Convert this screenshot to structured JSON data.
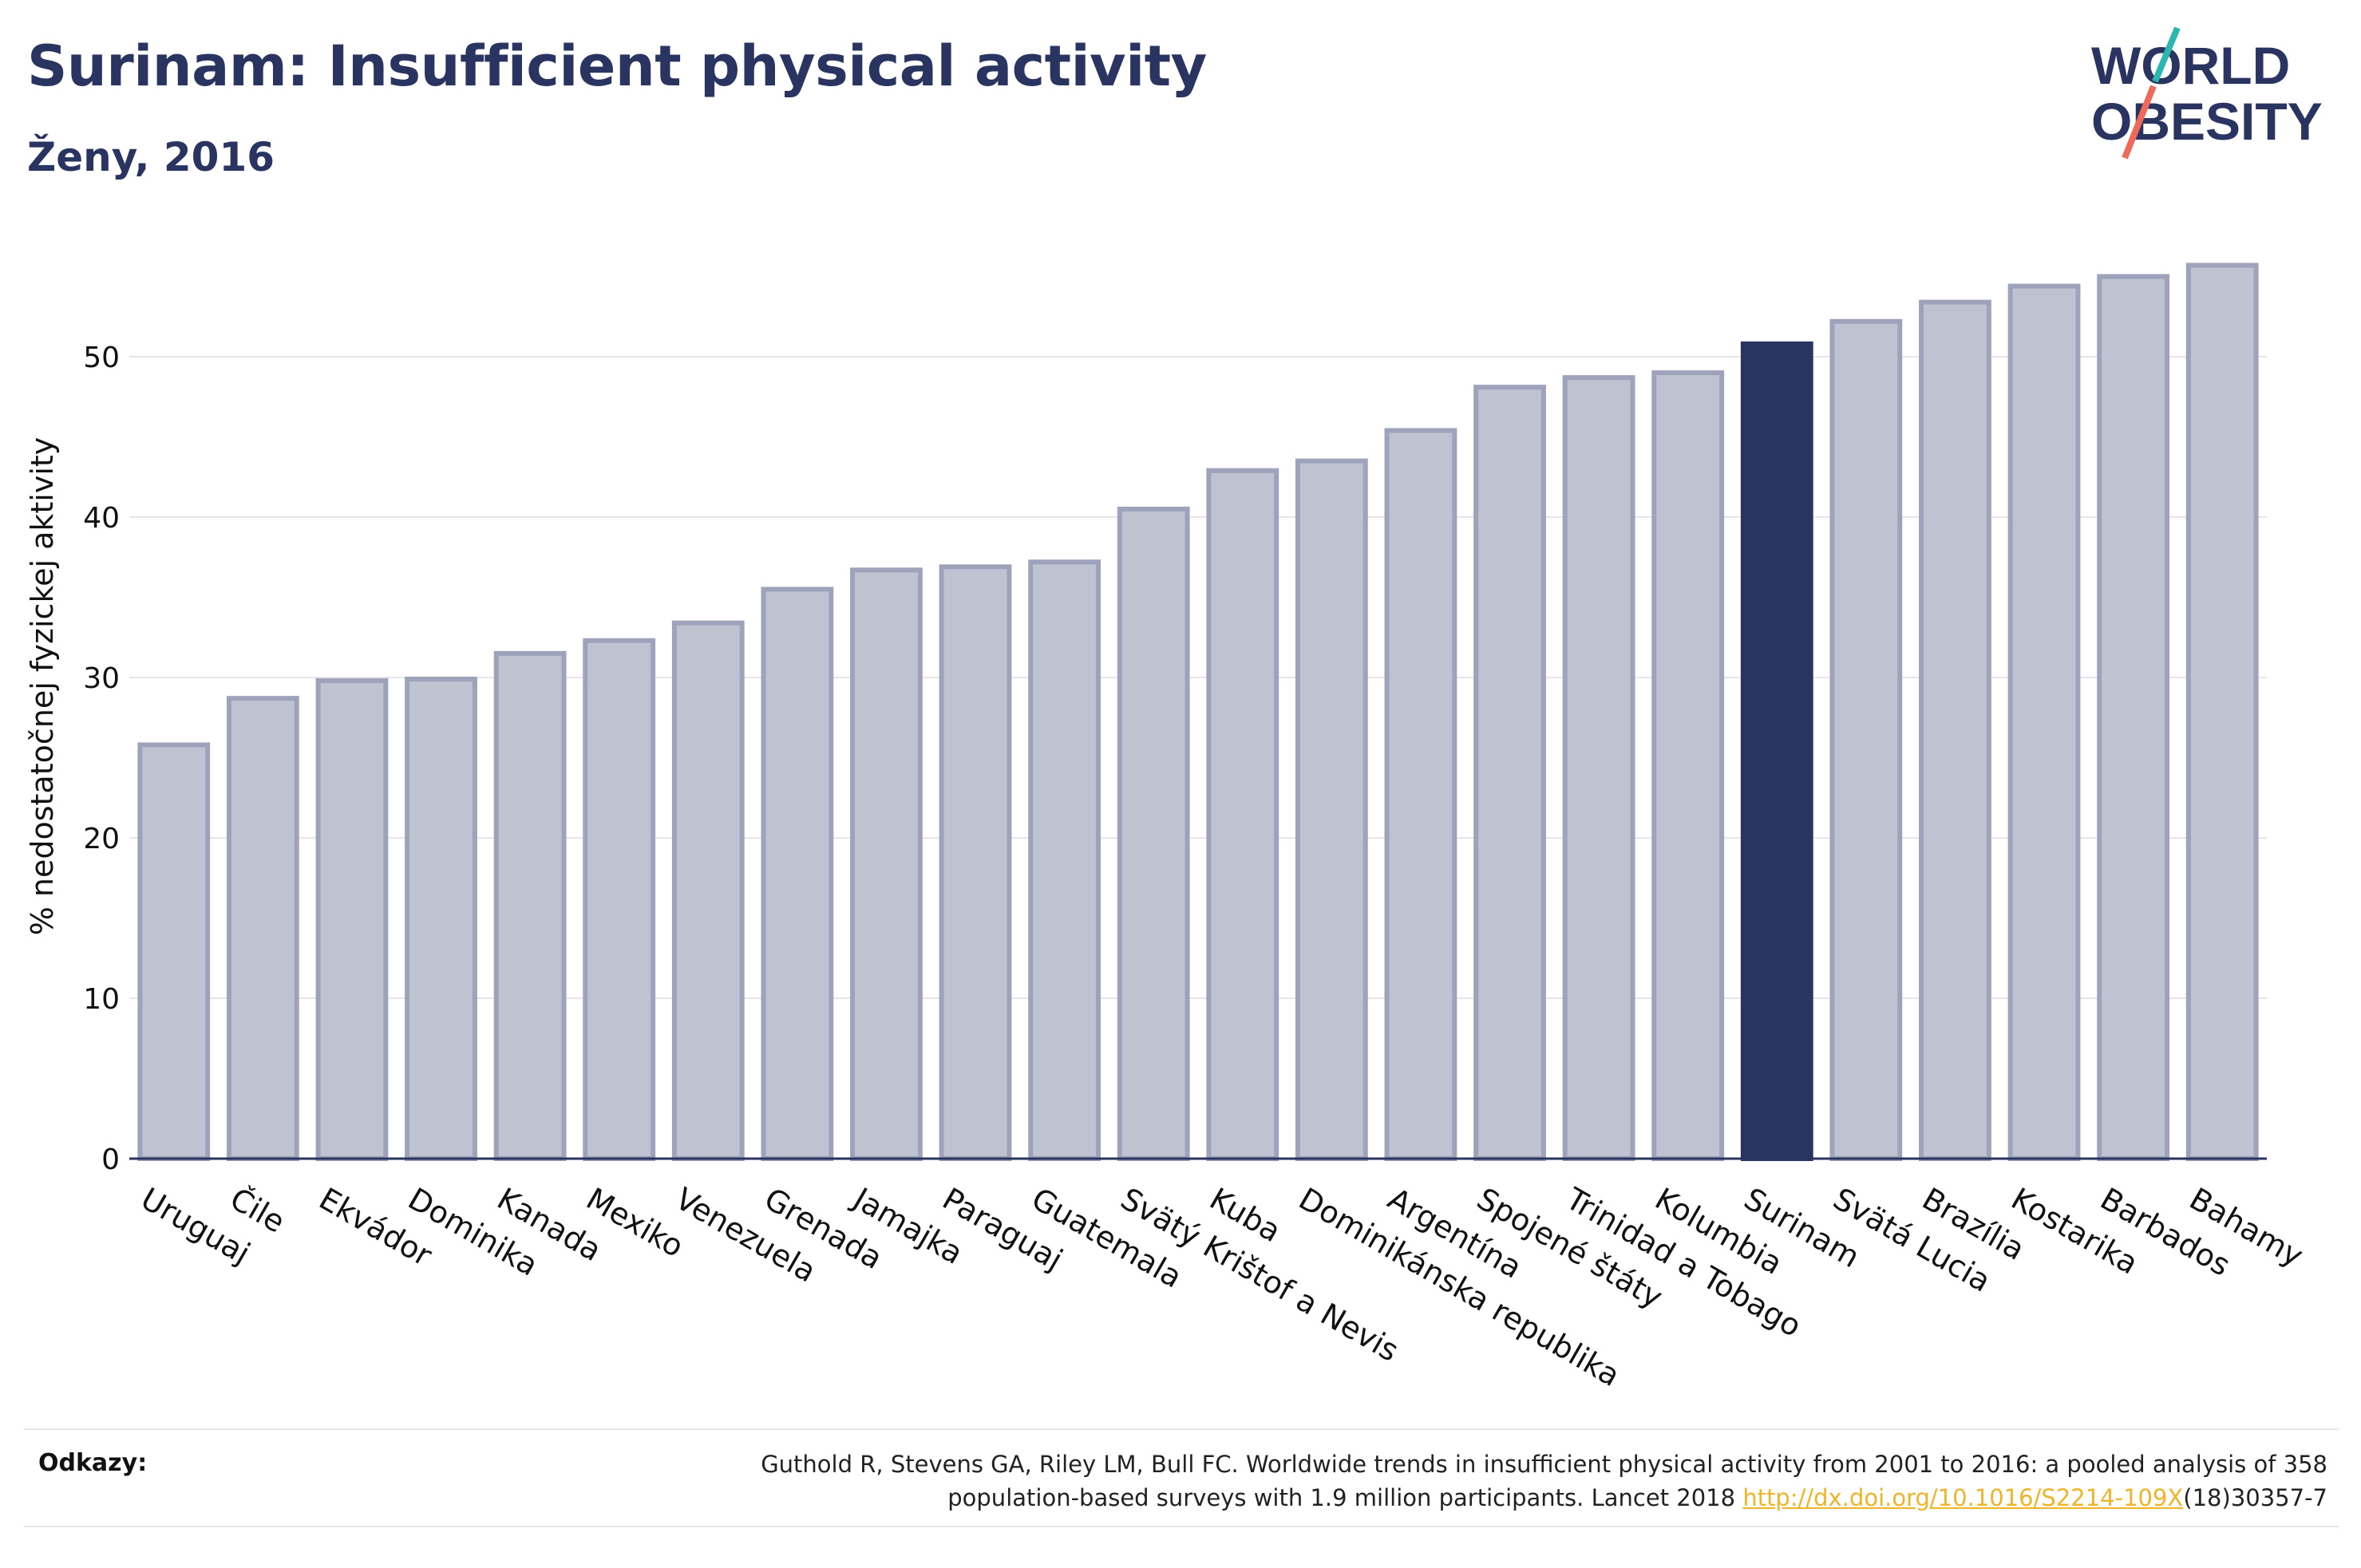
{
  "header": {
    "title": "Surinam: Insufficient physical activity",
    "subtitle": "Ženy, 2016"
  },
  "logo": {
    "line1": "WORLD",
    "line2": "OBESITY"
  },
  "colors": {
    "bar": "#bfc2d0",
    "bar_edge": "#9ea3bb",
    "highlight": "#2a3460",
    "grid": "#e6e6ea",
    "axis": "#2a3460"
  },
  "chart_data": {
    "type": "bar",
    "ylabel": "% nedostatočnej fyzickej aktivity",
    "xlabel": "",
    "ylim": [
      0,
      56
    ],
    "yticks": [
      0,
      10,
      20,
      30,
      40,
      50
    ],
    "grid": true,
    "highlight_category": "Surinam",
    "categories": [
      "Uruguaj",
      "Čile",
      "Ekvádor",
      "Dominika",
      "Kanada",
      "Mexiko",
      "Venezuela",
      "Grenada",
      "Jamajka",
      "Paraguaj",
      "Guatemala",
      "Svätý Krištof a Nevis",
      "Kuba",
      "Dominikánska republika",
      "Argentína",
      "Spojené štáty",
      "Trinidad a Tobago",
      "Kolumbia",
      "Surinam",
      "Svätá Lucia",
      "Brazília",
      "Kostarika",
      "Barbados",
      "Bahamy"
    ],
    "values": [
      25.8,
      28.7,
      29.8,
      29.9,
      31.5,
      32.3,
      33.4,
      35.5,
      36.7,
      36.9,
      37.2,
      40.5,
      42.9,
      43.5,
      45.4,
      48.1,
      48.7,
      49.0,
      50.8,
      52.2,
      53.4,
      54.4,
      55.0,
      55.7
    ]
  },
  "footer": {
    "label": "Odkazy:",
    "text_line1": "Guthold R, Stevens GA, Riley LM, Bull FC. Worldwide trends in insufficient physical activity from 2001 to 2016: a pooled analysis of 358",
    "text_line2_pre": "population-based surveys with 1.9 million participants. Lancet 2018 ",
    "link": "http://dx.doi.org/10.1016/S2214-109X",
    "text_line2_post": "(18)30357-7"
  }
}
